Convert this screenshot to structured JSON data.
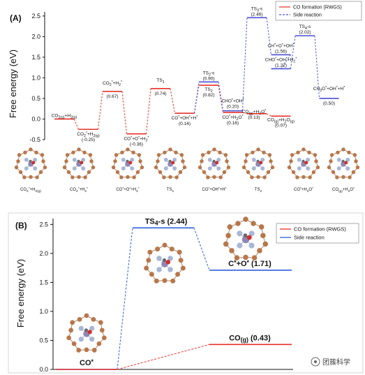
{
  "colors": {
    "rwgs": "#e8302a",
    "side": "#4a4fd6",
    "side_b": "#2d5fe0",
    "atom_c": "#b8774a",
    "atom_n": "#a9b7d6",
    "atom_o": "#d0302a",
    "atom_metal": "#8f86b8"
  },
  "watermark": "团簇科学",
  "chart_data": [
    {
      "type": "line",
      "panel_label": "(A)",
      "ylabel": "Free energy (eV)",
      "ylim": [
        -0.5,
        2.6
      ],
      "yticks": [
        "-0.5",
        "0.0",
        "0.5",
        "1.0",
        "1.5",
        "2.0",
        "2.5"
      ],
      "legend": {
        "position": "top-right",
        "items": [
          "CO formation (RWGS)",
          "Side reaction"
        ]
      },
      "series": [
        {
          "name": "CO formation (RWGS)",
          "points": [
            {
              "slot": 0,
              "value": 0.0,
              "label": "CO2(g)+H2(g)",
              "value_label": ""
            },
            {
              "slot": 1,
              "value": -0.25,
              "label": "CO2*+H2(g)",
              "value_label": "(-0.25)"
            },
            {
              "slot": 2,
              "value": 0.67,
              "label": "CO2*+H2*",
              "value_label": "(0.67)"
            },
            {
              "slot": 3,
              "value": -0.36,
              "label": "CO*+O*+H2*",
              "value_label": "(-0.36)"
            },
            {
              "slot": 4,
              "value": 0.74,
              "label": "TS1",
              "value_label": "(0.74)"
            },
            {
              "slot": 5,
              "value": 0.14,
              "label": "CO*+OH*+H*",
              "value_label": "(0.14)"
            },
            {
              "slot": 6,
              "value": 0.82,
              "label": "TS2",
              "value_label": "(0.82)"
            },
            {
              "slot": 7,
              "value": 0.16,
              "label": "CO*+H2O*",
              "value_label": "(0.16)"
            },
            {
              "slot": 8,
              "value": 0.13,
              "label": "CO(g)+H2O*",
              "value_label": "(0.13)"
            },
            {
              "slot": 9,
              "value": 0.07,
              "label": "CO(g)+H2O(g)",
              "value_label": "(0.07)"
            }
          ]
        },
        {
          "name": "Side reaction",
          "points": [
            {
              "slot": 5,
              "value": 0.14,
              "label": "",
              "value_label": ""
            },
            {
              "slot": 6,
              "value": 0.9,
              "label": "TS2-s",
              "value_label": "(0.90)"
            },
            {
              "slot": 7,
              "value": 0.2,
              "label": "CHO*+OH*",
              "value_label": "(0.20)"
            },
            {
              "slot": 8,
              "value": 2.46,
              "label": "TS3-s",
              "value_label": "(2.46)"
            },
            {
              "slot": 9,
              "value": 1.56,
              "label": "CH*+O*+OH*",
              "value_label": "(1.56)"
            },
            {
              "slot": 9,
              "value": 1.22,
              "label": "CHO*+OH*+H2*",
              "value_label": "(1.22)"
            },
            {
              "slot": 10,
              "value": 2.02,
              "label": "TS4-s",
              "value_label": "(2.02)"
            },
            {
              "slot": 11,
              "value": 0.5,
              "label": "CH3O*+OH*+H*",
              "value_label": "(0.50)"
            }
          ]
        }
      ],
      "structures": [
        {
          "label": "CO2*+H2(g)"
        },
        {
          "label": "CO2*+H2*"
        },
        {
          "label": "CO*+O*+H2*"
        },
        {
          "label": "TS1"
        },
        {
          "label": "CO*+OH*+H*"
        },
        {
          "label": "TS2"
        },
        {
          "label": "CO*+H2O*"
        },
        {
          "label": "CO(g)+H2O*"
        }
      ]
    },
    {
      "type": "line",
      "panel_label": "(B)",
      "ylabel": "Free energy (eV)",
      "ylim": [
        0.0,
        2.6
      ],
      "yticks": [
        "0.0",
        "0.5",
        "1.0",
        "1.5",
        "2.0",
        "2.5"
      ],
      "legend": {
        "position": "top-right",
        "items": [
          "CO formation (RWGS)",
          "Side reaction"
        ]
      },
      "series": [
        {
          "name": "CO formation (RWGS)",
          "points": [
            {
              "slot": 0,
              "value": 0.0,
              "label": "CO*"
            },
            {
              "slot": 2,
              "value": 0.43,
              "label": "CO(g) (0.43)"
            }
          ]
        },
        {
          "name": "Side reaction",
          "points": [
            {
              "slot": 0,
              "value": 0.0,
              "label": "CO*"
            },
            {
              "slot": 1,
              "value": 2.44,
              "label": "TS4-s (2.44)"
            },
            {
              "slot": 2,
              "value": 1.71,
              "label": "C*+O* (1.71)"
            }
          ]
        }
      ]
    }
  ]
}
